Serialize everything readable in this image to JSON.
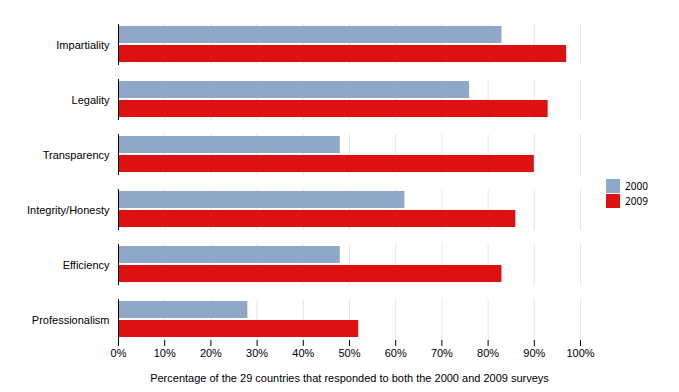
{
  "chart_data": {
    "type": "bar",
    "orientation": "horizontal",
    "categories": [
      "Impartiality",
      "Legality",
      "Transparency",
      "Integrity/Honesty",
      "Efficiency",
      "Professionalism"
    ],
    "series": [
      {
        "name": "2000",
        "color": "#8fa8c8",
        "values": [
          83,
          76,
          48,
          62,
          48,
          28
        ]
      },
      {
        "name": "2009",
        "color": "#dd1111",
        "values": [
          97,
          93,
          90,
          86,
          83,
          52
        ]
      }
    ],
    "xlabel": "Percentage of the 29 countries that responded to both the 2000 and 2009 surveys",
    "xlim": [
      0,
      100
    ],
    "xticks": [
      {
        "value": 0,
        "label": "0%"
      },
      {
        "value": 10,
        "label": "10%"
      },
      {
        "value": 20,
        "label": "20%"
      },
      {
        "value": 30,
        "label": "30%"
      },
      {
        "value": 40,
        "label": "40%"
      },
      {
        "value": 50,
        "label": "50%"
      },
      {
        "value": 60,
        "label": "60%"
      },
      {
        "value": 70,
        "label": "70%"
      },
      {
        "value": 80,
        "label": "80%"
      },
      {
        "value": 90,
        "label": "90%"
      },
      {
        "value": 100,
        "label": "100%"
      }
    ],
    "grid": true,
    "legend": "right"
  }
}
